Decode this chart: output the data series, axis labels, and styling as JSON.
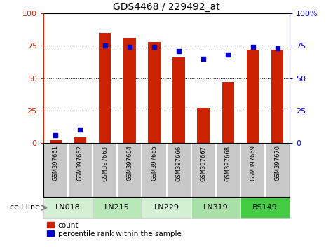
{
  "title": "GDS4468 / 229492_at",
  "samples": [
    "GSM397661",
    "GSM397662",
    "GSM397663",
    "GSM397664",
    "GSM397665",
    "GSM397666",
    "GSM397667",
    "GSM397668",
    "GSM397669",
    "GSM397670"
  ],
  "count": [
    2,
    4,
    85,
    81,
    78,
    66,
    27,
    47,
    72,
    72
  ],
  "percentile": [
    6,
    10,
    75,
    74,
    74,
    71,
    65,
    68,
    74,
    73
  ],
  "cell_lines": [
    {
      "name": "LN018",
      "start": 0,
      "end": 2,
      "color": "#d4f0d4"
    },
    {
      "name": "LN215",
      "start": 2,
      "end": 4,
      "color": "#b8e8b8"
    },
    {
      "name": "LN229",
      "start": 4,
      "end": 6,
      "color": "#d4f0d4"
    },
    {
      "name": "LN319",
      "start": 6,
      "end": 8,
      "color": "#a8e0a8"
    },
    {
      "name": "BS149",
      "start": 8,
      "end": 10,
      "color": "#44cc44"
    }
  ],
  "bar_color": "#cc2200",
  "dot_color": "#0000cc",
  "left_axis_color": "#cc2200",
  "right_axis_color": "#0000cc",
  "ylim": [
    0,
    100
  ],
  "yticks": [
    0,
    25,
    50,
    75,
    100
  ],
  "tick_area_color": "#c8c8c8",
  "cell_line_label": "cell line",
  "legend_count": "count",
  "legend_percentile": "percentile rank within the sample",
  "bar_width": 0.5
}
